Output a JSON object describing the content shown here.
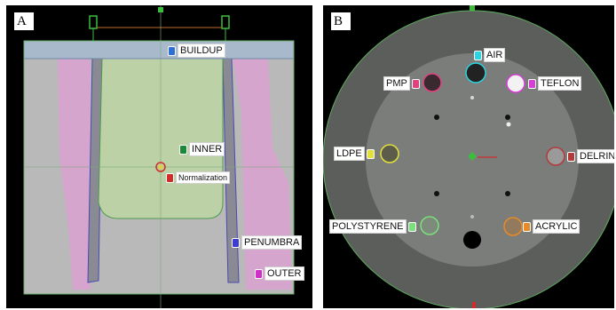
{
  "panels": {
    "a": {
      "letter": "A",
      "structures": {
        "buildup": {
          "label": "BUILDUP",
          "color": "#2d6fd6"
        },
        "inner": {
          "label": "INNER",
          "color": "#1a8a3a"
        },
        "normalization": {
          "label": "Normalization",
          "color": "#d22b2b"
        },
        "penumbra": {
          "label": "PENUMBRA",
          "color": "#3d3bd0"
        },
        "outer": {
          "label": "OUTER",
          "color": "#d02fc7"
        }
      }
    },
    "b": {
      "letter": "B",
      "inserts": {
        "air": {
          "label": "AIR",
          "color": "#2ad4e0"
        },
        "pmp": {
          "label": "PMP",
          "color": "#e0417f"
        },
        "teflon": {
          "label": "TEFLON",
          "color": "#d63ed6"
        },
        "ldpe": {
          "label": "LDPE",
          "color": "#e3e03a"
        },
        "delrin": {
          "label": "DELRIN",
          "color": "#b23a3a"
        },
        "polystyrene": {
          "label": "POLYSTYRENE",
          "color": "#7be07b"
        },
        "acrylic": {
          "label": "ACRYLIC",
          "color": "#e88a2a"
        }
      }
    }
  }
}
